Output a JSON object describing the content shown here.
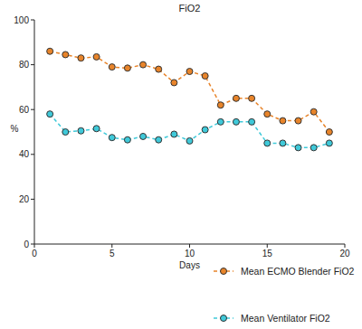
{
  "chart_data": {
    "type": "line",
    "title": "FiO2",
    "x_label": "Days",
    "y_label": "%",
    "x": [
      1,
      2,
      3,
      4,
      5,
      6,
      7,
      8,
      9,
      10,
      11,
      12,
      13,
      14,
      15,
      16,
      17,
      18,
      19
    ],
    "series": [
      {
        "name": "Mean ECMO Blender FiO2",
        "color": "#e8842a",
        "marker": "circle",
        "line_style": "dashed",
        "values": [
          86,
          84.5,
          83,
          83.5,
          79,
          78.5,
          80,
          78,
          72,
          77,
          75,
          62,
          65,
          65,
          58,
          55,
          55,
          59,
          50
        ]
      },
      {
        "name": "Mean Ventilator FiO2",
        "color": "#3fc9d9",
        "marker": "circle",
        "line_style": "dashed",
        "values": [
          58,
          50,
          50.5,
          51.5,
          47.5,
          46.5,
          48,
          46.5,
          49,
          46,
          51,
          54.5,
          54.5,
          54.5,
          45,
          45,
          43,
          43,
          45
        ]
      }
    ],
    "xlim": [
      0,
      20
    ],
    "xticks": [
      0,
      5,
      10,
      15,
      20
    ],
    "ylim": [
      0,
      100
    ],
    "yticks": [
      0,
      20,
      40,
      60,
      80,
      100
    ],
    "grid": false,
    "legend": "bottom-right"
  }
}
